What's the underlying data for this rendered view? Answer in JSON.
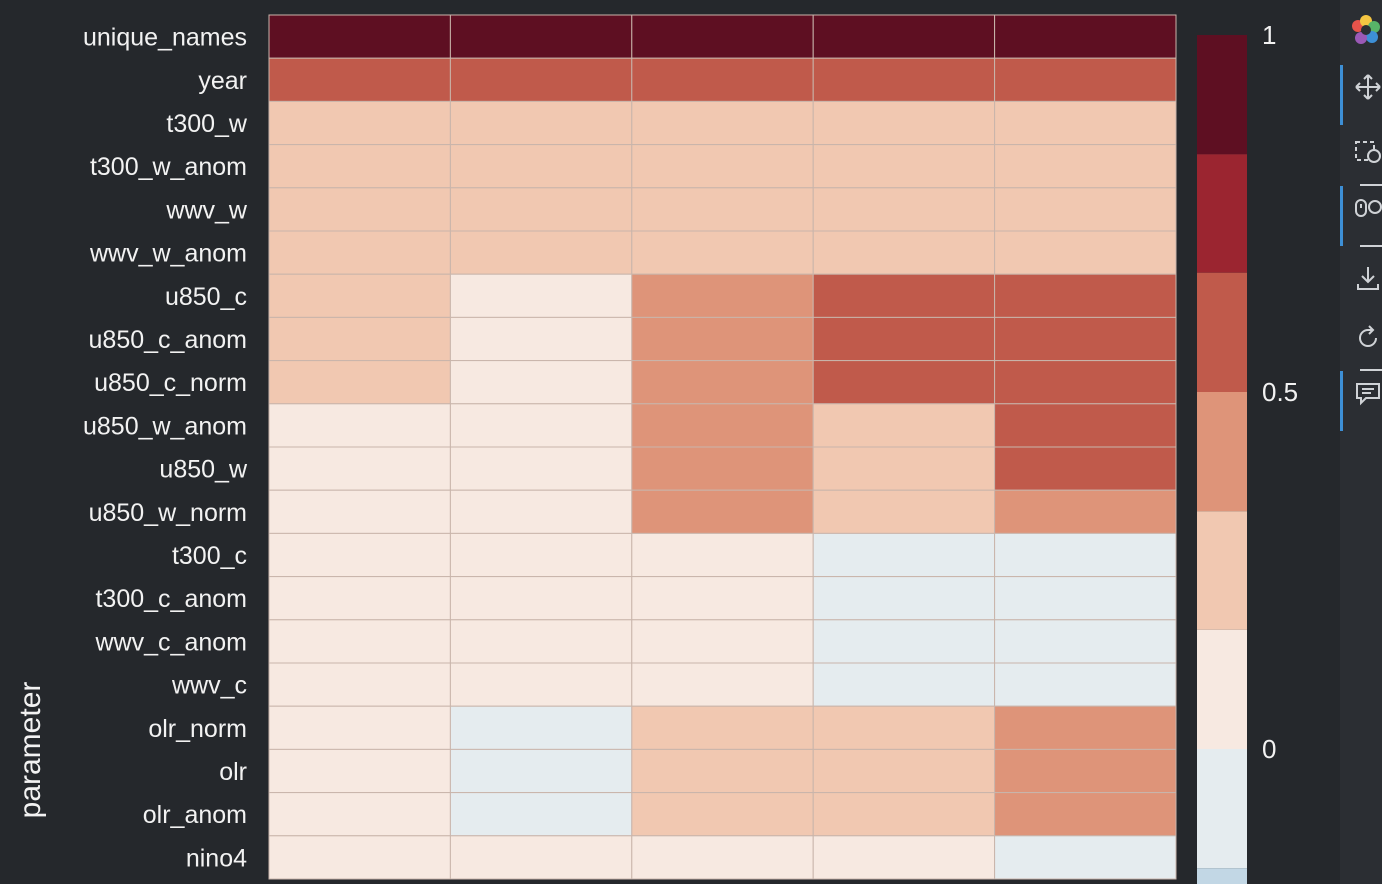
{
  "chart_data": {
    "type": "heatmap",
    "ylabel": "parameter",
    "xlabel": "",
    "rows": [
      "unique_names",
      "year",
      "t300_w",
      "t300_w_anom",
      "wwv_w",
      "wwv_w_anom",
      "u850_c",
      "u850_c_anom",
      "u850_c_norm",
      "u850_w_anom",
      "u850_w",
      "u850_w_norm",
      "t300_c",
      "t300_c_anom",
      "wwv_c_anom",
      "wwv_c",
      "olr_norm",
      "olr",
      "olr_anom",
      "nino4"
    ],
    "columns": 5,
    "values": [
      [
        1.0,
        1.0,
        1.0,
        1.0,
        1.0
      ],
      [
        0.58,
        0.58,
        0.58,
        0.58,
        0.58
      ],
      [
        0.25,
        0.25,
        0.25,
        0.25,
        0.25
      ],
      [
        0.25,
        0.25,
        0.25,
        0.25,
        0.25
      ],
      [
        0.25,
        0.25,
        0.25,
        0.25,
        0.25
      ],
      [
        0.25,
        0.25,
        0.25,
        0.25,
        0.25
      ],
      [
        0.25,
        0.08,
        0.42,
        0.58,
        0.58
      ],
      [
        0.25,
        0.08,
        0.42,
        0.58,
        0.58
      ],
      [
        0.25,
        0.08,
        0.42,
        0.58,
        0.58
      ],
      [
        0.08,
        0.08,
        0.42,
        0.25,
        0.58
      ],
      [
        0.08,
        0.08,
        0.42,
        0.25,
        0.58
      ],
      [
        0.08,
        0.08,
        0.42,
        0.25,
        0.42
      ],
      [
        0.08,
        0.08,
        0.08,
        -0.08,
        -0.08
      ],
      [
        0.08,
        0.08,
        0.08,
        -0.08,
        -0.08
      ],
      [
        0.08,
        0.08,
        0.08,
        -0.08,
        -0.08
      ],
      [
        0.08,
        0.08,
        0.08,
        -0.08,
        -0.08
      ],
      [
        0.08,
        -0.08,
        0.25,
        0.25,
        0.42
      ],
      [
        0.08,
        -0.08,
        0.25,
        0.25,
        0.42
      ],
      [
        0.08,
        -0.08,
        0.25,
        0.25,
        0.42
      ],
      [
        0.08,
        0.08,
        0.08,
        0.08,
        -0.08
      ]
    ],
    "colorbar": {
      "ticks": [
        {
          "value": 1,
          "label": "1"
        },
        {
          "value": 0.5,
          "label": "0.5"
        },
        {
          "value": 0,
          "label": "0"
        }
      ],
      "bins": [
        {
          "from": 0.833,
          "to": 1.0,
          "color": "#5e0f22"
        },
        {
          "from": 0.667,
          "to": 0.833,
          "color": "#9b2530"
        },
        {
          "from": 0.5,
          "to": 0.667,
          "color": "#c05a4b"
        },
        {
          "from": 0.333,
          "to": 0.5,
          "color": "#de9479"
        },
        {
          "from": 0.167,
          "to": 0.333,
          "color": "#f1c8b1"
        },
        {
          "from": 0.0,
          "to": 0.167,
          "color": "#f7e9e1"
        },
        {
          "from": -0.167,
          "to": 0.0,
          "color": "#e5ecef"
        },
        {
          "from": -0.333,
          "to": -0.167,
          "color": "#c2d7e5"
        }
      ]
    },
    "colors": {
      "grid_line": "#c9b5ab",
      "label_text": "#f2f2f2",
      "background": "#25282c"
    }
  },
  "toolbar": {
    "tools": [
      {
        "name": "bokeh-logo-icon"
      },
      {
        "name": "pan-icon"
      },
      {
        "name": "box-zoom-icon"
      },
      {
        "name": "wheel-zoom-icon"
      },
      {
        "name": "save-icon"
      },
      {
        "name": "reset-icon"
      },
      {
        "name": "hover-icon"
      }
    ]
  }
}
